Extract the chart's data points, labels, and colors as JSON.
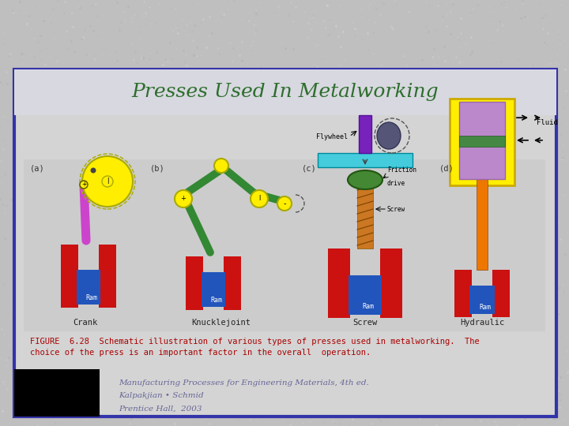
{
  "title": "Presses Used In Metalworking",
  "title_color": "#2d6e2d",
  "title_fontsize": 18,
  "bg_outer": "#c0bfbf",
  "bg_inner": "#d4d4d4",
  "bg_diagram": "#cecece",
  "border_color": "#3333aa",
  "border_width": 3,
  "figure_caption_line1": "FIGURE  6.28  Schematic illustration of various types of presses used in metalworking.  The",
  "figure_caption_line2": "choice of the press is an important factor in the overall  operation.",
  "caption_color": "#aa0000",
  "caption_fontsize": 7.5,
  "reference_line1": "Manufacturing Processes for Engineering Materials, 4th ed.",
  "reference_line2": "Kalpakjian • Schmid",
  "reference_line3": "Prentice Hall,  2003",
  "reference_color": "#666699",
  "reference_fontsize": 7.5,
  "sub_labels": [
    "(a)",
    "(b)",
    "(c)",
    "(d)"
  ],
  "sub_titles": [
    "Crank",
    "Knucklejoint",
    "Screw",
    "Hydraulic"
  ],
  "sub_title_color": "#222222",
  "sub_label_color": "#333333",
  "red_pillar": "#cc1111",
  "blue_ram": "#2255bb",
  "yellow_wheel": "#ffee00",
  "yellow_edge": "#aaaa00",
  "magenta_rod": "#cc44cc",
  "green_arm": "#338833",
  "cyan_bar": "#44ccdd",
  "purple_shaft": "#7722bb",
  "orange_screw": "#cc7722",
  "green_nut": "#338833",
  "yellow_hydraulic": "#ffee00",
  "purple_piston": "#bb88cc",
  "green_seal": "#448844",
  "orange_rod": "#ee7700"
}
